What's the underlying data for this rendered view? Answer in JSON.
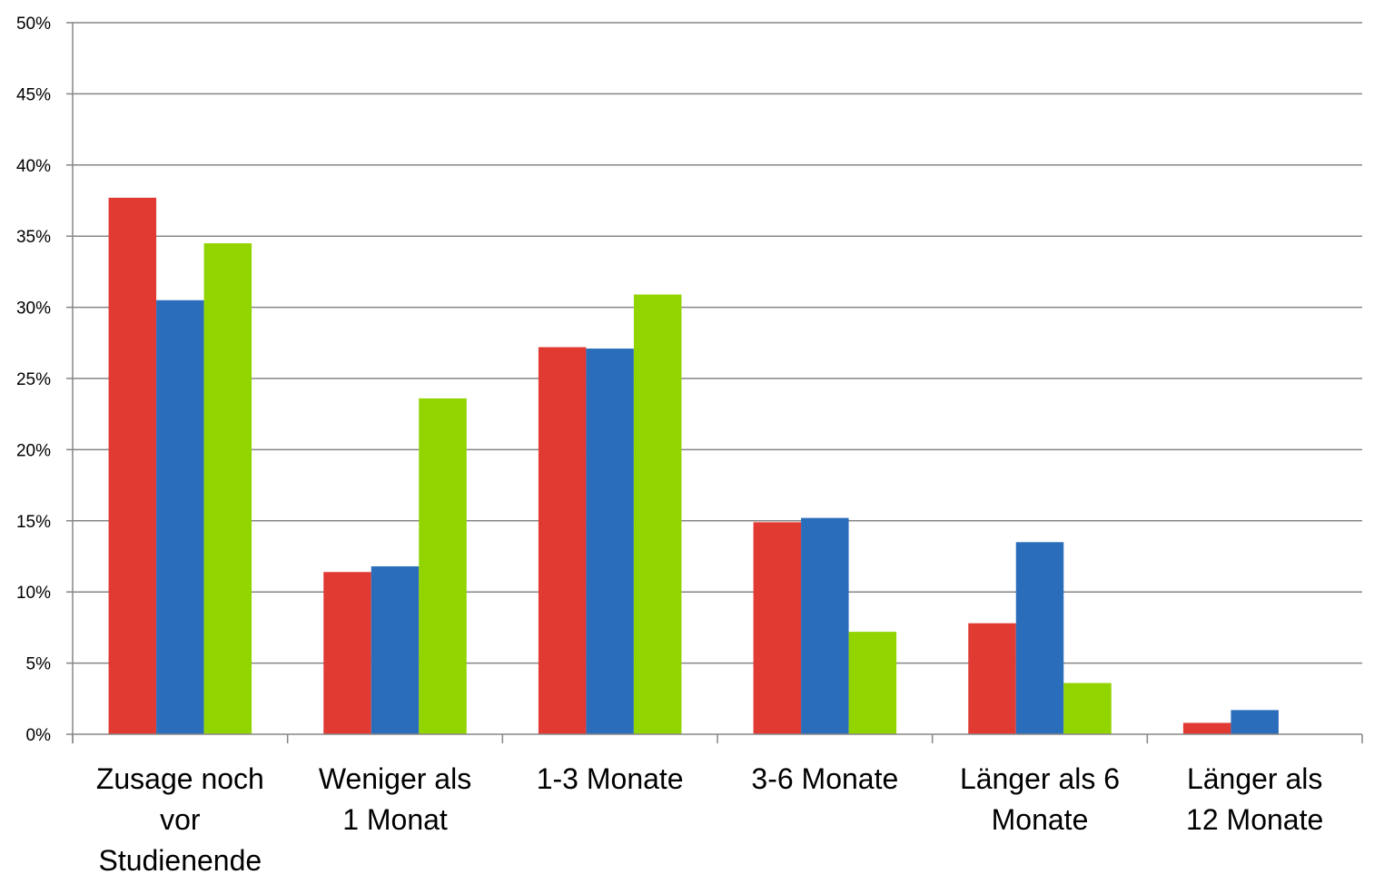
{
  "chart_data": {
    "type": "bar",
    "categories": [
      "Zusage noch vor Studienende",
      "Weniger als 1 Monat",
      "1-3 Monate",
      "3-6 Monate",
      "Länger als 6 Monate",
      "Länger als 12 Monate"
    ],
    "series": [
      {
        "color": "#e03a33",
        "values": [
          37.7,
          11.4,
          27.2,
          14.9,
          7.8,
          0.8
        ]
      },
      {
        "color": "#2a6ebb",
        "values": [
          30.5,
          11.8,
          27.1,
          15.2,
          13.5,
          1.7
        ]
      },
      {
        "color": "#92d400",
        "values": [
          34.5,
          23.6,
          30.9,
          7.2,
          3.6,
          0
        ]
      }
    ],
    "yticks": [
      "0%",
      "5%",
      "10%",
      "15%",
      "20%",
      "25%",
      "30%",
      "35%",
      "40%",
      "45%",
      "50%"
    ],
    "ylim": [
      0,
      50
    ],
    "grid": true,
    "legend": "none"
  }
}
